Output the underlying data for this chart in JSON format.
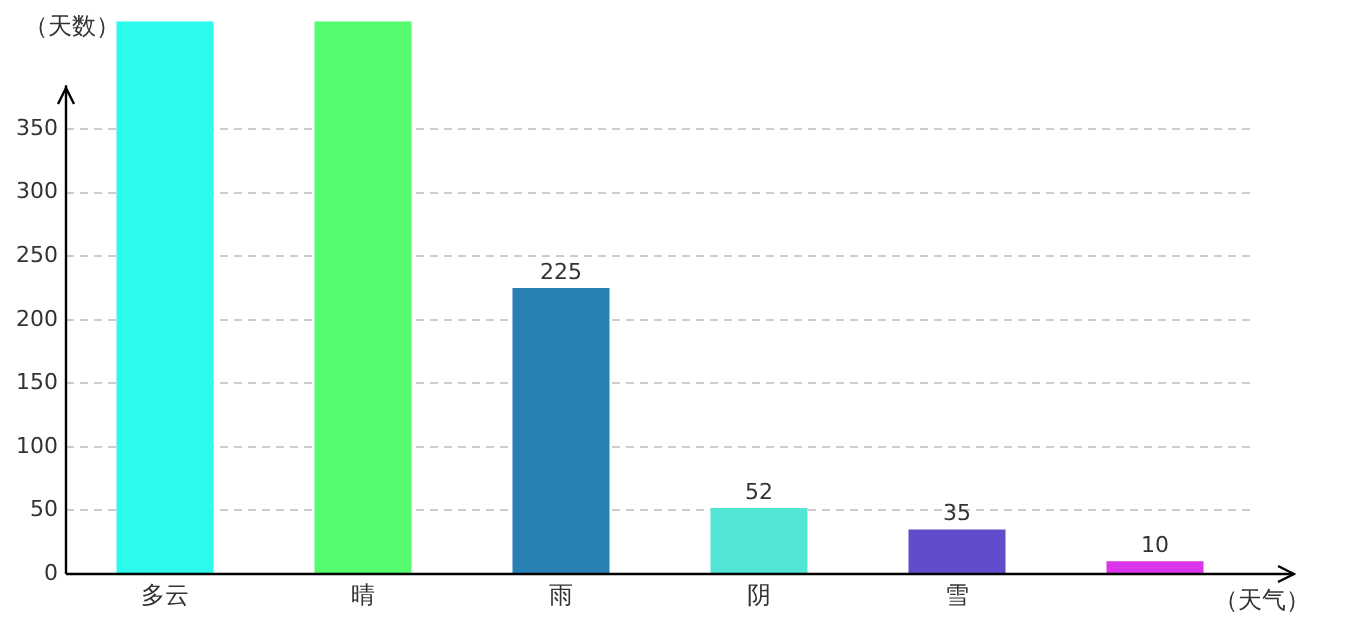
{
  "chart_data": {
    "type": "bar",
    "ylabel": "（天数）",
    "xlabel": "（天气）",
    "categories": [
      "多云",
      "晴",
      "雨",
      "阴",
      "雪",
      null
    ],
    "values": [
      435,
      435,
      225,
      52,
      35,
      10
    ],
    "colors": [
      "#2cfaea",
      "#55fc6f",
      "#2980b3",
      "#52e5d6",
      "#634ccb",
      "#dc34ea"
    ],
    "value_labels": [
      null,
      null,
      "225",
      "52",
      "35",
      "10"
    ],
    "ylim": [
      0,
      435
    ],
    "yticks": [
      0,
      50,
      100,
      150,
      200,
      250,
      300,
      350
    ],
    "grid": "y",
    "legend": false
  }
}
